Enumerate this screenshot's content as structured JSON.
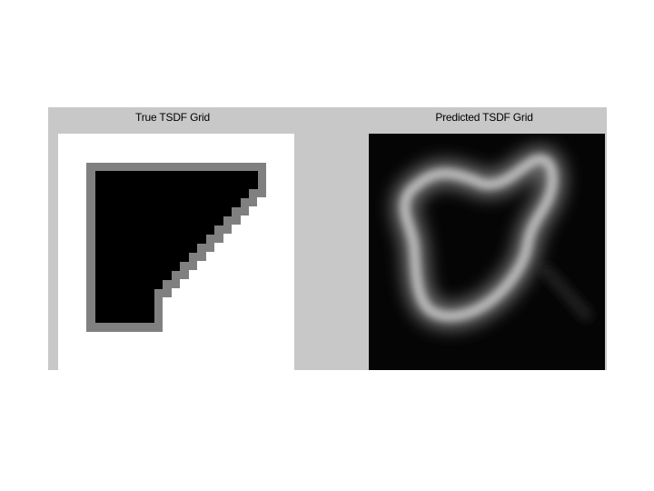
{
  "figure": {
    "left_title": "True TSDF Grid",
    "right_title": "Predicted TSDF Grid"
  },
  "colors": {
    "window_background": "#c8c8c8",
    "true_outside": "#ffffff",
    "true_boundary": "#808080",
    "true_inside": "#000000",
    "predicted_background": "#050505",
    "predicted_ring": "#bfbfbf"
  }
}
